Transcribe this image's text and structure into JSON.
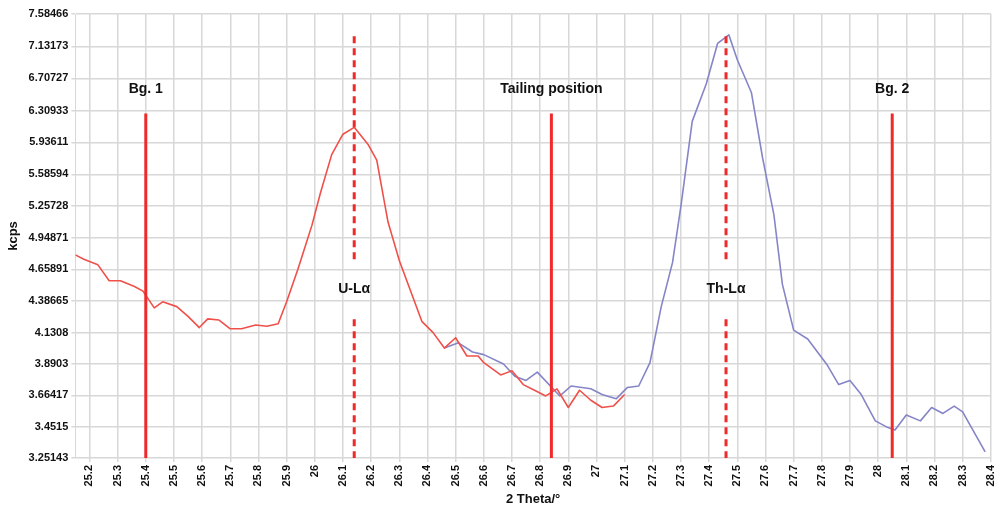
{
  "chart_data": {
    "type": "line",
    "xlabel": "2 Theta/°",
    "ylabel": "kcps",
    "log": "y",
    "grid": true,
    "legend": false,
    "marker": "none",
    "line_style": "solid",
    "xlim": [
      25.15,
      28.4
    ],
    "xticks": [
      25.2,
      25.3,
      25.4,
      25.5,
      25.6,
      25.7,
      25.8,
      25.9,
      26,
      26.1,
      26.2,
      26.3,
      26.4,
      26.5,
      26.6,
      26.7,
      26.8,
      26.9,
      27,
      27.1,
      27.2,
      27.3,
      27.4,
      27.5,
      27.6,
      27.7,
      27.8,
      27.9,
      28,
      28.1,
      28.2,
      28.3,
      28.4
    ],
    "ylim": [
      3.25143,
      7.58466
    ],
    "yticks": [
      3.25143,
      3.4515,
      3.66417,
      3.8903,
      4.1308,
      4.38665,
      4.65891,
      4.94871,
      5.25728,
      5.58594,
      5.93611,
      6.30933,
      6.70727,
      7.13173,
      7.58466
    ],
    "series": [
      {
        "color": "#f0504a",
        "x": [
          25.15,
          25.18,
          25.23,
          25.27,
          25.31,
          25.36,
          25.39,
          25.43,
          25.46,
          25.51,
          25.55,
          25.59,
          25.62,
          25.66,
          25.7,
          25.74,
          25.79,
          25.83,
          25.87,
          25.9,
          25.94,
          25.99,
          26.02,
          26.06,
          26.1,
          26.14,
          26.19,
          26.22,
          26.26,
          26.3,
          26.38,
          26.42,
          26.46,
          26.5,
          26.54,
          26.58,
          26.6,
          26.66,
          26.7,
          26.74,
          26.78,
          26.82,
          26.86,
          26.9,
          26.94,
          26.98,
          27.02,
          27.06,
          27.1
        ],
        "values": [
          4.79,
          4.75,
          4.7,
          4.56,
          4.56,
          4.51,
          4.47,
          4.33,
          4.38,
          4.34,
          4.26,
          4.17,
          4.24,
          4.23,
          4.16,
          4.16,
          4.19,
          4.18,
          4.2,
          4.38,
          4.66,
          5.07,
          5.39,
          5.8,
          6.03,
          6.11,
          5.91,
          5.74,
          5.1,
          4.74,
          4.22,
          4.13,
          4.01,
          4.09,
          3.95,
          3.95,
          3.9,
          3.81,
          3.84,
          3.74,
          3.7,
          3.66,
          3.71,
          3.58,
          3.7,
          3.63,
          3.58,
          3.59,
          3.67
        ]
      },
      {
        "color": "#8585c8",
        "x": [
          26.46,
          26.51,
          26.56,
          26.6,
          26.67,
          26.71,
          26.75,
          26.79,
          26.87,
          26.91,
          26.98,
          27.02,
          27.07,
          27.11,
          27.15,
          27.19,
          27.23,
          27.27,
          27.3,
          27.34,
          27.39,
          27.43,
          27.47,
          27.5,
          27.55,
          27.59,
          27.63,
          27.66,
          27.7,
          27.75,
          27.82,
          27.86,
          27.9,
          27.94,
          27.99,
          28.03,
          28.06,
          28.1,
          28.15,
          28.19,
          28.23,
          28.27,
          28.3,
          28.38
        ],
        "values": [
          4.01,
          4.05,
          3.98,
          3.96,
          3.89,
          3.8,
          3.77,
          3.83,
          3.66,
          3.73,
          3.71,
          3.67,
          3.64,
          3.72,
          3.73,
          3.9,
          4.34,
          4.72,
          5.26,
          6.18,
          6.64,
          7.17,
          7.29,
          6.95,
          6.53,
          5.76,
          5.17,
          4.53,
          4.15,
          4.08,
          3.88,
          3.74,
          3.77,
          3.67,
          3.49,
          3.45,
          3.43,
          3.53,
          3.49,
          3.58,
          3.54,
          3.59,
          3.55,
          3.29
        ]
      }
    ],
    "ref_lines": [
      {
        "axis": "x",
        "value": 25.4,
        "label": "Bg. 1",
        "color": "#ee2a2a",
        "line_style": "solid"
      },
      {
        "axis": "x",
        "value": 26.14,
        "label": "U-Lα",
        "color": "#ee2a2a",
        "line_style": "dashed"
      },
      {
        "axis": "x",
        "value": 26.84,
        "label": "Tailing position",
        "color": "#ee2a2a",
        "line_style": "solid"
      },
      {
        "axis": "x",
        "value": 27.46,
        "label": "Th-Lα",
        "color": "#ee2a2a",
        "line_style": "dashed"
      },
      {
        "axis": "x",
        "value": 28.05,
        "label": "Bg. 2",
        "color": "#ee2a2a",
        "line_style": "solid"
      }
    ]
  }
}
